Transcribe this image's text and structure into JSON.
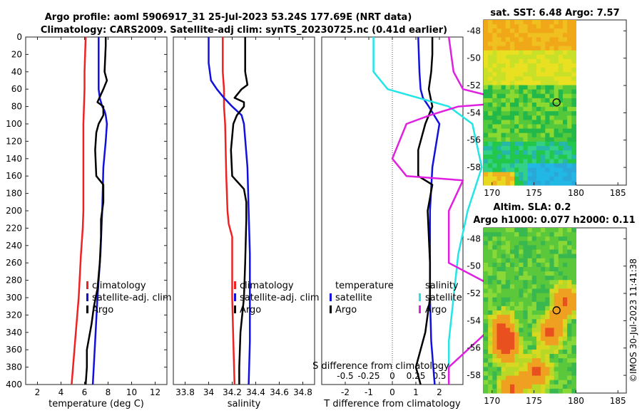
{
  "figure": {
    "title_line1": "Argo profile: aoml 5906917_31 25-Jul-2023 53.24S 177.69E (NRT data)",
    "title_line2": "Climatology: CARS2009. Satellite-adj clim: synTS_20230725.nc (0.41d earlier)",
    "watermark": "©IMOS 30-Jul-2023 11:41:38"
  },
  "colors": {
    "climatology": "#ee2222",
    "satellite": "#1111dd",
    "argo": "#000000",
    "temp_diff": "#000000",
    "sat_diff_blue": "#1111dd",
    "sal_diff_cyan": "#22e6e6",
    "sal_diff_magenta": "#e020e0"
  },
  "chart_data": [
    {
      "type": "line",
      "name": "temperature-profile",
      "xlabel": "temperature (deg C)",
      "xlim": [
        1,
        13
      ],
      "xticks": [
        2,
        4,
        6,
        8,
        10,
        12
      ],
      "ylim": [
        400,
        0
      ],
      "yticks": [
        0,
        20,
        40,
        60,
        80,
        100,
        120,
        140,
        160,
        180,
        200,
        220,
        240,
        260,
        280,
        300,
        320,
        340,
        360,
        380,
        400
      ],
      "legend": [
        "climatology",
        "satellite-adj. clim",
        "Argo"
      ],
      "series": [
        {
          "name": "climatology",
          "color_key": "climatology",
          "depth": [
            0,
            20,
            40,
            60,
            80,
            100,
            150,
            200,
            220,
            250,
            300,
            350,
            400
          ],
          "values": [
            6.1,
            6.05,
            6.0,
            6.0,
            5.95,
            5.9,
            5.9,
            5.9,
            5.85,
            5.7,
            5.5,
            5.2,
            4.9
          ]
        },
        {
          "name": "satellite-adj. clim",
          "color_key": "satellite",
          "depth": [
            0,
            20,
            40,
            60,
            70,
            80,
            85,
            90,
            100,
            120,
            150,
            200,
            250,
            300,
            350,
            400
          ],
          "values": [
            7.2,
            7.2,
            7.2,
            7.2,
            7.3,
            7.5,
            7.7,
            7.8,
            7.9,
            7.8,
            7.6,
            7.5,
            7.35,
            7.1,
            6.9,
            6.7
          ]
        },
        {
          "name": "Argo",
          "color_key": "argo",
          "depth": [
            0,
            10,
            40,
            50,
            60,
            75,
            80,
            90,
            100,
            110,
            130,
            160,
            170,
            190,
            210,
            230,
            260,
            290,
            310,
            330,
            360,
            380,
            400
          ],
          "values": [
            7.8,
            7.8,
            7.7,
            7.9,
            7.6,
            7.1,
            7.6,
            7.6,
            7.2,
            7.0,
            6.9,
            7.0,
            7.6,
            7.6,
            7.4,
            7.4,
            7.3,
            7.1,
            6.8,
            6.6,
            6.2,
            6.2,
            6.1
          ]
        }
      ]
    },
    {
      "type": "line",
      "name": "salinity-profile",
      "xlabel": "salinity",
      "xlim": [
        33.7,
        34.9
      ],
      "xticks": [
        33.8,
        34,
        34.2,
        34.4,
        34.6,
        34.8
      ],
      "ylim": [
        400,
        0
      ],
      "legend": [
        "climatology",
        "satellite-adj. clim",
        "Argo"
      ],
      "series": [
        {
          "name": "climatology",
          "color_key": "climatology",
          "depth": [
            0,
            40,
            60,
            80,
            100,
            160,
            200,
            215,
            230,
            260,
            300,
            350,
            400
          ],
          "values": [
            34.12,
            34.12,
            34.13,
            34.13,
            34.14,
            34.15,
            34.16,
            34.17,
            34.2,
            34.2,
            34.2,
            34.21,
            34.22
          ]
        },
        {
          "name": "satellite-adj. clim",
          "color_key": "satellite",
          "depth": [
            0,
            30,
            50,
            60,
            70,
            80,
            90,
            100,
            150,
            200,
            250,
            300,
            350,
            400
          ],
          "values": [
            34.0,
            34.0,
            34.02,
            34.07,
            34.13,
            34.2,
            34.28,
            34.3,
            34.33,
            34.34,
            34.35,
            34.35,
            34.35,
            34.34
          ]
        },
        {
          "name": "Argo",
          "color_key": "argo",
          "depth": [
            0,
            10,
            40,
            55,
            60,
            70,
            75,
            80,
            90,
            100,
            130,
            160,
            175,
            190,
            210,
            260,
            300,
            340,
            380,
            400
          ],
          "values": [
            34.31,
            34.31,
            34.31,
            34.33,
            34.28,
            34.22,
            34.3,
            34.3,
            34.24,
            34.21,
            34.19,
            34.2,
            34.3,
            34.32,
            34.32,
            34.31,
            34.3,
            34.27,
            34.26,
            34.26
          ]
        }
      ]
    },
    {
      "type": "line",
      "name": "difference-profile",
      "xlabel": "T difference from climatology",
      "xlabel_top": "S difference from climatology",
      "xlim": [
        -3,
        3
      ],
      "xticks": [
        -2,
        -1,
        0,
        1,
        2
      ],
      "xticks_s": [
        "-0.5",
        "-0.25",
        "0",
        "0.25",
        "0.5"
      ],
      "ylim": [
        400,
        0
      ],
      "legend_left_title": "temperature",
      "legend_right_title": "salinity",
      "legend_left": [
        "satellite",
        "Argo"
      ],
      "legend_right": [
        "satellite",
        "Argo"
      ],
      "series": [
        {
          "name": "temperature satellite",
          "color_key": "sat_diff_blue",
          "depth": [
            0,
            40,
            60,
            70,
            80,
            100,
            150,
            200,
            260,
            300,
            350,
            400
          ],
          "values": [
            1.1,
            1.15,
            1.2,
            1.3,
            1.55,
            2.0,
            1.7,
            1.6,
            1.6,
            1.6,
            1.65,
            1.8
          ]
        },
        {
          "name": "temperature Argo",
          "color_key": "temp_diff",
          "depth": [
            0,
            20,
            40,
            60,
            80,
            100,
            130,
            160,
            170,
            200,
            260,
            300,
            340,
            380,
            400
          ],
          "values": [
            1.7,
            1.7,
            1.65,
            1.55,
            1.7,
            1.4,
            1.1,
            1.1,
            1.7,
            1.5,
            1.6,
            1.6,
            1.4,
            1.0,
            1.2
          ]
        },
        {
          "name": "salinity satellite",
          "color_key": "sal_diff_cyan",
          "depth": [
            0,
            40,
            60,
            80,
            100,
            150,
            200,
            250,
            300,
            350,
            400
          ],
          "values": [
            -0.2,
            -0.2,
            -0.05,
            0.6,
            0.85,
            0.95,
            0.8,
            0.7,
            0.65,
            0.6,
            0.6
          ]
        },
        {
          "name": "salinity Argo",
          "color_key": "sal_diff_magenta",
          "depth": [
            0,
            40,
            60,
            75,
            80,
            90,
            100,
            140,
            160,
            165,
            200,
            260,
            300,
            340,
            380,
            400
          ],
          "values": [
            0.6,
            0.65,
            0.75,
            1.3,
            0.7,
            0.4,
            0.15,
            0.0,
            0.15,
            0.75,
            0.6,
            0.6,
            1.3,
            1.0,
            0.6,
            0.6
          ]
        }
      ]
    },
    {
      "type": "heatmap",
      "name": "sst-map",
      "title": "sat. SST: 6.48 Argo: 7.57",
      "xticks": [
        170,
        175,
        180,
        185
      ],
      "yticks": [
        -48,
        -50,
        -52,
        -54,
        -56,
        -58
      ],
      "xlim": [
        169,
        186
      ],
      "ylim": [
        -59.3,
        -47.2
      ],
      "argo_position": {
        "lon": 177.69,
        "lat": -53.24
      }
    },
    {
      "type": "heatmap",
      "name": "sla-map",
      "title": "Altim. SLA: 0.2",
      "subtitle": "Argo h1000: 0.077 h2000: 0.11",
      "xticks": [
        170,
        175,
        180,
        185
      ],
      "yticks": [
        -48,
        -50,
        -52,
        -54,
        -56,
        -58
      ],
      "xlim": [
        169,
        186
      ],
      "ylim": [
        -59.3,
        -47.2
      ],
      "argo_position": {
        "lon": 177.69,
        "lat": -53.24
      }
    }
  ]
}
